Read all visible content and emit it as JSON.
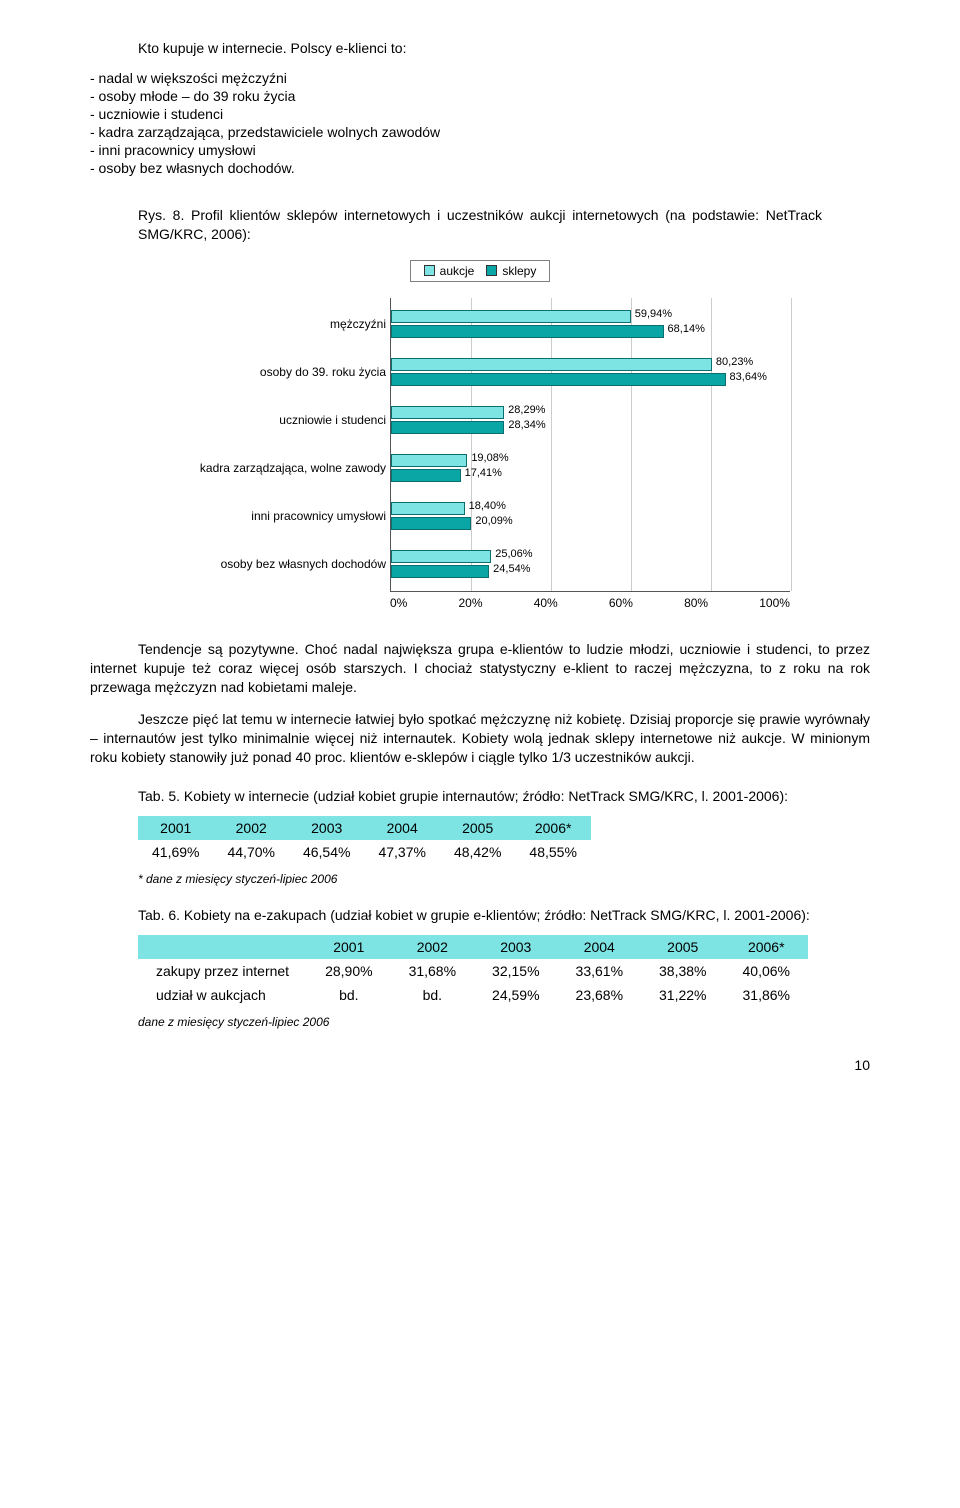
{
  "intro": "Kto kupuje w internecie. Polscy e-klienci to:",
  "bullets": [
    "- nadal w większości mężczyźni",
    "- osoby młode – do 39 roku życia",
    "- uczniowie i studenci",
    "- kadra zarządzająca, przedstawiciele wolnych zawodów",
    "- inni pracownicy umysłowi",
    "- osoby bez własnych dochodów."
  ],
  "fig_caption": "Rys. 8. Profil klientów sklepów internetowych i uczestników aukcji internetowych (na podstawie: NetTrack SMG/KRC, 2006):",
  "legend": {
    "a": "aukcje",
    "b": "sklepy"
  },
  "chart": {
    "categories": [
      "mężczyźni",
      "osoby do 39. roku życia",
      "uczniowie i studenci",
      "kadra zarządzająca, wolne zawody",
      "inni pracownicy umysłowi",
      "osoby bez własnych dochodów"
    ],
    "aukcje": [
      59.94,
      80.23,
      28.29,
      19.08,
      18.4,
      25.06
    ],
    "sklepy": [
      68.14,
      83.64,
      28.34,
      17.41,
      20.09,
      24.54
    ],
    "aukcje_lbl": [
      "59,94%",
      "80,23%",
      "28,29%",
      "19,08%",
      "18,40%",
      "25,06%"
    ],
    "sklepy_lbl": [
      "68,14%",
      "83,64%",
      "28,34%",
      "17,41%",
      "20,09%",
      "24,54%"
    ],
    "xticks": [
      "0%",
      "20%",
      "40%",
      "60%",
      "80%",
      "100%"
    ],
    "color_aukcje": "#7de3e3",
    "color_sklepy": "#0aa5a5",
    "xmax": 100
  },
  "para1": "Tendencje są pozytywne. Choć nadal największa grupa e-klientów to ludzie młodzi, uczniowie i studenci, to przez internet kupuje też coraz więcej osób starszych. I chociaż statystyczny e-klient to raczej mężczyzna, to z roku na rok przewaga mężczyzn nad kobietami maleje.",
  "para2": "Jeszcze pięć lat temu w internecie łatwiej było spotkać mężczyznę niż kobietę. Dzisiaj proporcje się prawie wyrównały – internautów jest tylko minimalnie więcej niż internautek. Kobiety wolą jednak sklepy internetowe niż aukcje. W minionym roku kobiety stanowiły już ponad 40 proc. klientów e-sklepów i ciągle tylko 1/3 uczestników aukcji.",
  "tab5_caption": "Tab. 5. Kobiety w internecie (udział kobiet grupie internautów; źródło: NetTrack SMG/KRC, l. 2001-2006):",
  "tab5_headers": [
    "2001",
    "2002",
    "2003",
    "2004",
    "2005",
    "2006*"
  ],
  "tab5_row": [
    "41,69%",
    "44,70%",
    "46,54%",
    "47,37%",
    "48,42%",
    "48,55%"
  ],
  "tab5_note": "* dane z miesięcy styczeń-lipiec 2006",
  "tab6_caption": "Tab. 6. Kobiety na e-zakupach (udział kobiet w grupie e-klientów; źródło: NetTrack SMG/KRC, l. 2001-2006):",
  "tab6_headers": [
    "",
    "2001",
    "2002",
    "2003",
    "2004",
    "2005",
    "2006*"
  ],
  "tab6_rows": [
    [
      "zakupy przez internet",
      "28,90%",
      "31,68%",
      "32,15%",
      "33,61%",
      "38,38%",
      "40,06%"
    ],
    [
      "udział w aukcjach",
      "bd.",
      "bd.",
      "24,59%",
      "23,68%",
      "31,22%",
      "31,86%"
    ]
  ],
  "tab6_note": "dane z miesięcy styczeń-lipiec 2006",
  "pagenum": "10"
}
